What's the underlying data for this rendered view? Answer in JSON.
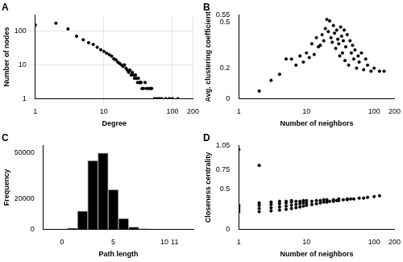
{
  "chart_data": [
    {
      "type": "scatter",
      "title": "A",
      "x_label": "Degree",
      "y_label": "Number of nodes",
      "log": true,
      "grid": true,
      "color": "#000000",
      "xlim": [
        1,
        200
      ],
      "xticks": [
        1,
        10,
        100,
        200
      ],
      "ylim": [
        1,
        300
      ],
      "yticks": [
        1,
        10,
        100
      ],
      "x": [
        1,
        2,
        3,
        4,
        5,
        6,
        7,
        8,
        9,
        10,
        11,
        12,
        13,
        14,
        15,
        16,
        17,
        18,
        19,
        20,
        21,
        22,
        23,
        24,
        25,
        26,
        27,
        28,
        29,
        30,
        31,
        32,
        33,
        34,
        35,
        36,
        38,
        40,
        42,
        45,
        48,
        50,
        55,
        60,
        65,
        70,
        80,
        90,
        100,
        120
      ],
      "values": [
        150,
        170,
        115,
        70,
        55,
        45,
        40,
        33,
        28,
        25,
        22,
        20,
        18,
        15,
        14,
        12,
        11,
        10,
        9,
        10,
        8,
        7,
        6,
        7,
        5,
        6,
        5,
        4,
        5,
        4,
        3,
        4,
        3,
        3,
        3,
        2,
        2,
        3,
        2,
        2,
        2,
        2,
        1,
        1,
        1,
        1,
        1,
        1,
        1,
        1
      ]
    },
    {
      "type": "scatter",
      "title": "B",
      "x_label": "Number of neighbors",
      "y_label": "Avg. clustering coefficient",
      "log": "x",
      "grid": false,
      "color": "#000000",
      "xlim": [
        1,
        200
      ],
      "xticks": [
        1,
        10,
        100,
        200
      ],
      "ylim": [
        0,
        0.55
      ],
      "yticks": [
        0,
        0.2,
        0.5,
        0.55
      ],
      "x": [
        2,
        3,
        4,
        5,
        6,
        7,
        8,
        9,
        10,
        11,
        12,
        13,
        14,
        15,
        16,
        17,
        18,
        19,
        20,
        21,
        22,
        23,
        24,
        25,
        26,
        27,
        28,
        29,
        30,
        31,
        32,
        33,
        34,
        35,
        36,
        37,
        38,
        40,
        42,
        44,
        46,
        48,
        50,
        52,
        55,
        58,
        60,
        65,
        70,
        75,
        80,
        90,
        100,
        120,
        140
      ],
      "values": [
        0.05,
        0.12,
        0.16,
        0.26,
        0.26,
        0.22,
        0.28,
        0.24,
        0.3,
        0.27,
        0.36,
        0.29,
        0.4,
        0.34,
        0.35,
        0.42,
        0.38,
        0.46,
        0.52,
        0.44,
        0.51,
        0.4,
        0.37,
        0.48,
        0.43,
        0.33,
        0.45,
        0.39,
        0.36,
        0.28,
        0.47,
        0.41,
        0.3,
        0.38,
        0.45,
        0.25,
        0.34,
        0.42,
        0.22,
        0.38,
        0.3,
        0.35,
        0.26,
        0.32,
        0.2,
        0.28,
        0.24,
        0.3,
        0.19,
        0.26,
        0.22,
        0.18,
        0.2,
        0.18,
        0.18
      ]
    },
    {
      "type": "histogram",
      "title": "C",
      "x_label": "Path length",
      "y_label": "Frequency",
      "grid": false,
      "color": "#000000",
      "xlim": [
        0,
        11
      ],
      "xticks": [
        0,
        5,
        10,
        11
      ],
      "ylim": [
        0,
        55000
      ],
      "yticks": [
        0,
        20000,
        50000
      ],
      "bins": [
        0.5,
        1.5,
        2.5,
        3.5,
        4.5,
        5.5,
        6.5,
        7.5,
        8.5
      ],
      "values": [
        500,
        12000,
        45000,
        50000,
        26000,
        7000,
        1500,
        300
      ]
    },
    {
      "type": "scatter",
      "title": "D",
      "x_label": "Number of neighbors",
      "y_label": "Closeness centrality",
      "log": "x",
      "grid": false,
      "color": "#000000",
      "xlim": [
        1,
        200
      ],
      "xticks": [
        1,
        10,
        100,
        200
      ],
      "ylim": [
        0,
        1.05
      ],
      "yticks": [
        0,
        0.5,
        0.75,
        1.05
      ],
      "x": [
        1,
        1,
        1,
        1,
        1,
        2,
        2,
        2,
        2,
        2,
        3,
        3,
        3,
        3,
        4,
        4,
        4,
        4,
        5,
        5,
        5,
        5,
        6,
        6,
        6,
        6,
        7,
        7,
        7,
        8,
        8,
        8,
        9,
        9,
        9,
        10,
        10,
        10,
        12,
        12,
        14,
        14,
        16,
        16,
        18,
        18,
        20,
        20,
        22,
        25,
        25,
        28,
        30,
        30,
        35,
        40,
        40,
        45,
        50,
        60,
        70,
        80,
        100,
        120
      ],
      "values": [
        1.0,
        0.22,
        0.25,
        0.28,
        0.3,
        0.8,
        0.22,
        0.26,
        0.3,
        0.33,
        0.23,
        0.27,
        0.31,
        0.34,
        0.24,
        0.28,
        0.32,
        0.35,
        0.25,
        0.29,
        0.33,
        0.35,
        0.26,
        0.3,
        0.34,
        0.36,
        0.27,
        0.31,
        0.35,
        0.28,
        0.32,
        0.35,
        0.29,
        0.33,
        0.36,
        0.3,
        0.33,
        0.36,
        0.31,
        0.35,
        0.32,
        0.36,
        0.33,
        0.36,
        0.34,
        0.37,
        0.34,
        0.37,
        0.35,
        0.35,
        0.37,
        0.36,
        0.36,
        0.38,
        0.37,
        0.37,
        0.38,
        0.38,
        0.38,
        0.39,
        0.39,
        0.4,
        0.41,
        0.42
      ]
    }
  ]
}
